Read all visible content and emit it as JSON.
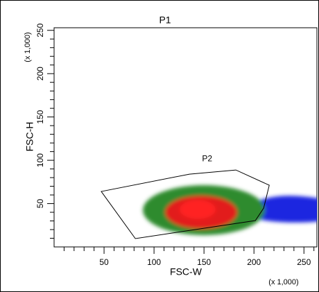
{
  "chart_data": {
    "type": "scatter",
    "title": "P1",
    "x_label": "FSC-W",
    "y_label": "FSC-H",
    "x_scale_label": "(x 1,000)",
    "y_scale_label": "(x 1,000)",
    "xlim": [
      0,
      263
    ],
    "ylim": [
      0,
      253
    ],
    "xticks": [
      50,
      100,
      150,
      200,
      250
    ],
    "yticks": [
      50,
      100,
      150,
      200,
      250
    ],
    "x_minor_ticks": [
      10,
      20,
      30,
      40,
      60,
      70,
      80,
      90,
      110,
      120,
      130,
      140,
      160,
      170,
      180,
      190,
      210,
      220,
      230,
      240,
      260
    ],
    "y_minor_ticks": [
      10,
      20,
      30,
      40,
      60,
      70,
      80,
      90,
      110,
      120,
      130,
      140,
      160,
      170,
      180,
      190,
      210,
      220,
      230,
      240
    ],
    "gates": [
      {
        "name": "P2",
        "vertices": [
          [
            47.2,
            64
          ],
          [
            135.4,
            84
          ],
          [
            181.9,
            88.8
          ],
          [
            215.3,
            71.2
          ],
          [
            209.7,
            44.8
          ],
          [
            201.4,
            30.4
          ],
          [
            81.3,
            9.6
          ]
        ]
      }
    ]
  }
}
